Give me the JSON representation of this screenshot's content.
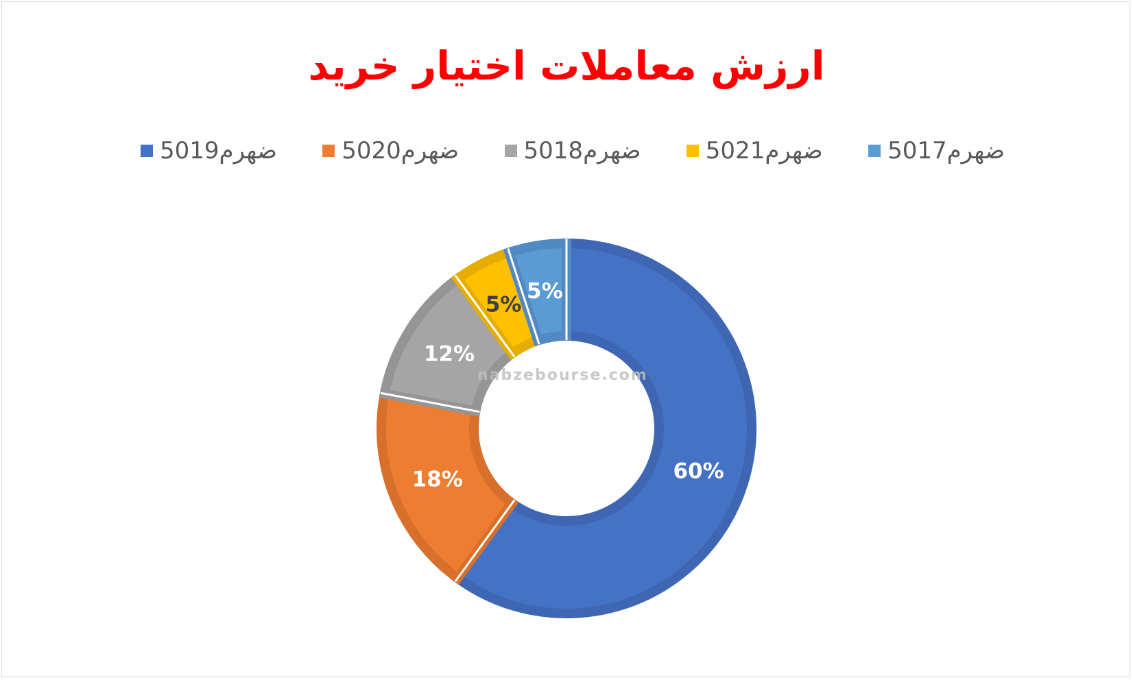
{
  "chart_data": {
    "type": "pie",
    "variant": "doughnut",
    "title": "ارزش معاملات اختیار خرید",
    "categories": [
      "ضهرم5019",
      "ضهرم5020",
      "ضهرم5018",
      "ضهرم5021",
      "ضهرم5017"
    ],
    "values": [
      60,
      18,
      12,
      5,
      5
    ],
    "data_labels": [
      "60%",
      "18%",
      "12%",
      "5%",
      "5%"
    ],
    "colors": [
      "#4472c4",
      "#ed7d31",
      "#a5a5a5",
      "#ffc000",
      "#5b9bd5"
    ],
    "border_colors": [
      "#3e66b3",
      "#d86f2b",
      "#959595",
      "#e6ad00",
      "#5189c2"
    ],
    "label_colors": [
      "#ffffff",
      "#ffffff",
      "#ffffff",
      "#404040",
      "#ffffff"
    ],
    "legend_position": "top"
  },
  "watermark": {
    "text": "nabzebourse.com"
  }
}
